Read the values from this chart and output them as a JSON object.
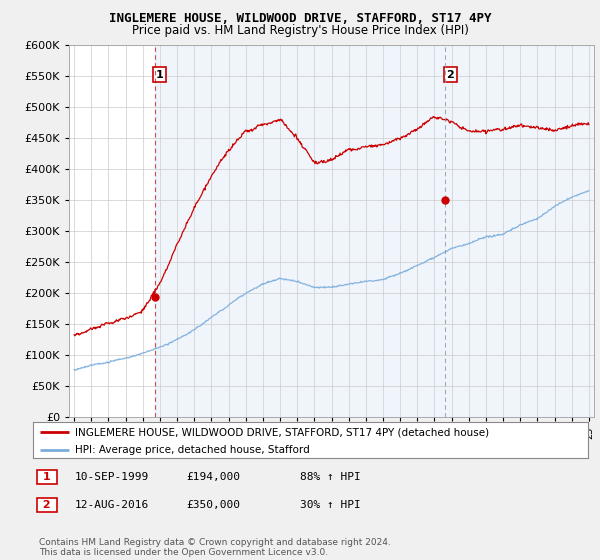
{
  "title": "INGLEMERE HOUSE, WILDWOOD DRIVE, STAFFORD, ST17 4PY",
  "subtitle": "Price paid vs. HM Land Registry's House Price Index (HPI)",
  "legend_line1": "INGLEMERE HOUSE, WILDWOOD DRIVE, STAFFORD, ST17 4PY (detached house)",
  "legend_line2": "HPI: Average price, detached house, Stafford",
  "note": "Contains HM Land Registry data © Crown copyright and database right 2024.\nThis data is licensed under the Open Government Licence v3.0.",
  "sale1_date": "10-SEP-1999",
  "sale1_price": "£194,000",
  "sale1_hpi": "88% ↑ HPI",
  "sale2_date": "12-AUG-2016",
  "sale2_price": "£350,000",
  "sale2_hpi": "30% ↑ HPI",
  "sale1_x": 1999.69,
  "sale1_y": 194000,
  "sale2_x": 2016.62,
  "sale2_y": 350000,
  "price_color": "#cc0000",
  "hpi_color": "#7aacdc",
  "vline1_color": "#cc0000",
  "vline2_color": "#8899aa",
  "background_color": "#f0f0f0",
  "plot_bg_color": "#ffffff",
  "fill_color": "#ddeeff",
  "ylim": [
    0,
    600000
  ],
  "xlim_start": 1994.7,
  "xlim_end": 2025.3,
  "hpi_knots_x": [
    1995,
    1996,
    1997,
    1998,
    1999,
    2000,
    2001,
    2002,
    2003,
    2004,
    2005,
    2006,
    2007,
    2008,
    2009,
    2010,
    2011,
    2012,
    2013,
    2014,
    2015,
    2016,
    2017,
    2018,
    2019,
    2020,
    2021,
    2022,
    2023,
    2024,
    2025
  ],
  "hpi_knots_y": [
    75000,
    82000,
    88000,
    95000,
    102000,
    112000,
    125000,
    140000,
    160000,
    180000,
    200000,
    215000,
    225000,
    220000,
    210000,
    210000,
    215000,
    218000,
    222000,
    232000,
    245000,
    258000,
    272000,
    280000,
    290000,
    295000,
    310000,
    320000,
    340000,
    355000,
    365000
  ],
  "price_knots_x": [
    1995,
    1996,
    1997,
    1998,
    1999,
    2000,
    2001,
    2002,
    2003,
    2004,
    2005,
    2006,
    2007,
    2008,
    2009,
    2010,
    2011,
    2012,
    2013,
    2014,
    2015,
    2016,
    2017,
    2018,
    2019,
    2020,
    2021,
    2022,
    2023,
    2024,
    2025
  ],
  "price_knots_y": [
    138000,
    148000,
    158000,
    165000,
    178000,
    220000,
    280000,
    340000,
    390000,
    430000,
    460000,
    470000,
    480000,
    450000,
    410000,
    415000,
    430000,
    435000,
    438000,
    445000,
    460000,
    480000,
    470000,
    455000,
    455000,
    460000,
    468000,
    465000,
    462000,
    470000,
    475000
  ]
}
